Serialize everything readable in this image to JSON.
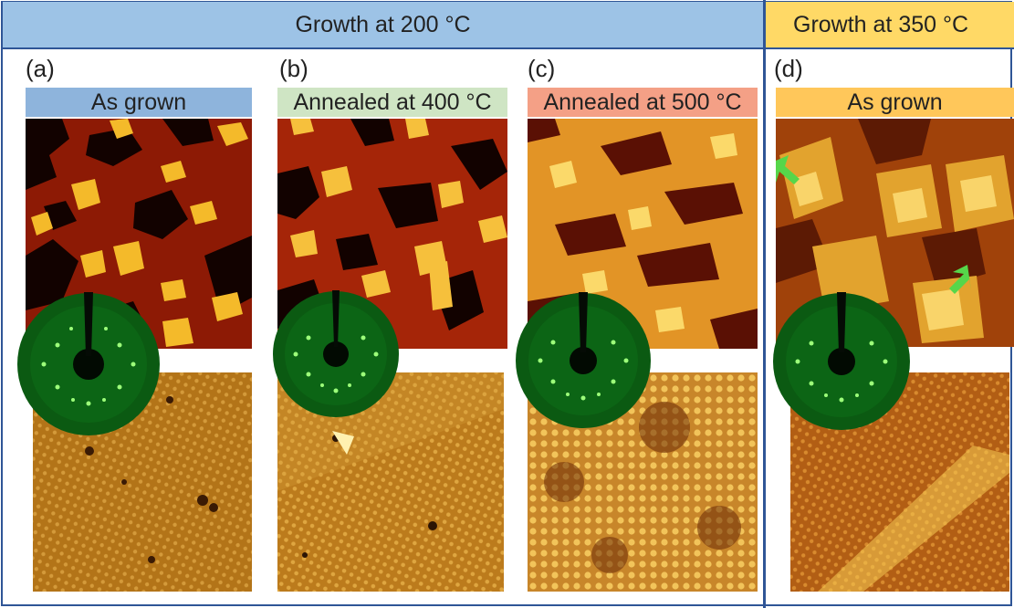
{
  "groups": {
    "g200": "Growth at 200 °C",
    "g350": "Growth at 350 °C"
  },
  "panels": [
    {
      "label": "(a)",
      "caption": "As grown",
      "caption_color": "#8eb4dc"
    },
    {
      "label": "(b)",
      "caption": "Annealed at 400 °C",
      "caption_color": "#cfe5c4"
    },
    {
      "label": "(c)",
      "caption": "Annealed at 500 °C",
      "caption_color": "#f4a086"
    },
    {
      "label": "(d)",
      "caption": "As grown",
      "caption_color": "#ffc75a"
    }
  ],
  "colors": {
    "frame": "#2f5596",
    "hdr_200": "#9dc3e6",
    "hdr_350": "#ffd966",
    "leed_spot": "#9dff7a",
    "arrow": "#56d64a"
  }
}
